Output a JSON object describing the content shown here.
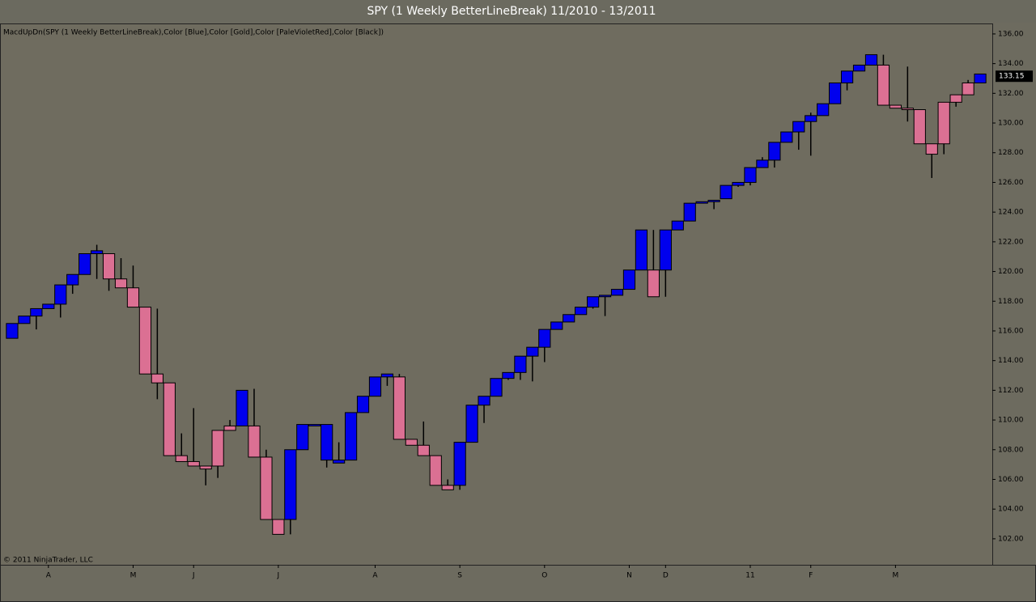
{
  "chart_data": {
    "type": "candlestick",
    "title": "SPY (1 Weekly BetterLineBreak)  11/2010 - 13/2011",
    "indicator_label": "MacdUpDn(SPY (1 Weekly BetterLineBreak),Color [Blue],Color [Gold],Color [PaleVioletRed],Color [Black])",
    "copyright": "© 2011 NinjaTrader, LLC",
    "open": [
      115.5,
      116.5,
      117.0,
      117.5,
      117.8,
      119.1,
      119.8,
      121.2,
      121.2,
      119.5,
      118.9,
      117.6,
      113.1,
      112.5,
      107.6,
      107.2,
      106.9,
      106.9,
      109.3,
      109.6,
      109.6,
      107.5,
      103.3,
      103.3,
      108.0,
      109.6,
      109.7,
      107.3,
      107.3,
      110.5,
      111.6,
      112.9,
      112.9,
      108.7,
      108.3,
      107.6,
      105.6,
      105.6,
      108.5,
      111.0,
      111.6,
      112.8,
      113.2,
      114.3,
      114.9,
      116.1,
      116.6,
      117.1,
      117.6,
      118.3,
      118.4,
      118.8,
      120.1,
      120.1,
      120.1,
      122.8,
      123.4,
      124.6,
      124.7,
      124.9,
      125.8,
      126.0,
      127.0,
      127.5,
      128.7,
      129.4,
      130.1,
      130.5,
      131.3,
      132.7,
      133.5,
      133.9,
      133.9,
      131.2,
      131.0,
      130.9,
      128.6,
      128.6,
      131.4,
      131.9,
      132.7
    ],
    "high": [
      116.5,
      117.0,
      117.5,
      117.8,
      119.1,
      119.8,
      121.2,
      121.8,
      121.2,
      120.9,
      120.4,
      117.6,
      117.5,
      112.5,
      109.1,
      110.8,
      106.9,
      109.3,
      110.0,
      112.0,
      112.1,
      108.0,
      103.3,
      108.0,
      109.7,
      109.7,
      109.7,
      108.5,
      110.5,
      111.6,
      112.9,
      113.1,
      113.1,
      108.7,
      109.9,
      107.6,
      106.0,
      108.5,
      111.0,
      111.6,
      112.8,
      113.2,
      114.3,
      114.9,
      116.1,
      116.6,
      117.1,
      117.6,
      118.3,
      118.4,
      118.8,
      120.1,
      122.8,
      122.8,
      122.8,
      123.4,
      124.6,
      124.7,
      124.8,
      125.8,
      126.0,
      127.0,
      127.7,
      128.7,
      129.4,
      130.1,
      130.7,
      131.3,
      132.7,
      133.5,
      133.9,
      134.6,
      134.6,
      131.2,
      133.8,
      130.9,
      128.6,
      131.4,
      131.9,
      132.9,
      133.3
    ],
    "low": [
      115.5,
      116.5,
      116.1,
      117.5,
      116.9,
      118.5,
      119.8,
      119.5,
      118.7,
      118.9,
      117.6,
      113.1,
      111.4,
      107.6,
      107.2,
      106.9,
      105.6,
      106.1,
      109.3,
      109.6,
      107.5,
      103.3,
      102.3,
      102.3,
      108.0,
      109.6,
      106.8,
      107.1,
      107.3,
      110.5,
      111.6,
      112.3,
      108.7,
      108.3,
      107.6,
      105.6,
      105.3,
      105.3,
      108.5,
      109.8,
      111.6,
      112.7,
      112.7,
      112.6,
      113.9,
      116.1,
      116.6,
      117.1,
      117.5,
      117.0,
      118.4,
      118.8,
      120.1,
      118.3,
      118.3,
      122.8,
      123.4,
      124.6,
      124.2,
      124.9,
      125.7,
      125.8,
      127.0,
      127.0,
      128.7,
      128.2,
      127.8,
      130.5,
      131.3,
      132.2,
      133.5,
      133.9,
      131.2,
      131.0,
      130.1,
      128.6,
      126.3,
      127.9,
      131.1,
      131.9,
      132.7
    ],
    "close": [
      116.5,
      117.0,
      117.5,
      117.8,
      119.1,
      119.8,
      121.2,
      121.4,
      119.5,
      118.9,
      117.6,
      113.1,
      112.5,
      107.6,
      107.2,
      106.9,
      106.7,
      109.3,
      109.6,
      112.0,
      107.5,
      103.3,
      102.3,
      108.0,
      109.7,
      109.7,
      107.3,
      107.1,
      110.5,
      111.6,
      112.9,
      113.1,
      108.7,
      108.3,
      107.6,
      105.6,
      105.3,
      108.5,
      111.0,
      111.6,
      112.8,
      113.2,
      114.3,
      114.9,
      116.1,
      116.6,
      117.1,
      117.6,
      118.3,
      118.4,
      118.8,
      120.1,
      122.8,
      118.3,
      122.8,
      123.4,
      124.6,
      124.7,
      124.8,
      125.8,
      126.0,
      127.0,
      127.5,
      128.7,
      129.4,
      130.1,
      130.5,
      131.3,
      132.7,
      133.5,
      133.9,
      134.6,
      131.2,
      131.0,
      130.9,
      128.6,
      127.9,
      131.4,
      131.9,
      132.7,
      133.3
    ],
    "colors": [
      "#0000ee",
      "#0000ee",
      "#0000ee",
      "#0000ee",
      "#0000ee",
      "#0000ee",
      "#0000ee",
      "#0000ee",
      "#db7093",
      "#db7093",
      "#db7093",
      "#db7093",
      "#db7093",
      "#db7093",
      "#db7093",
      "#db7093",
      "#db7093",
      "#db7093",
      "#db7093",
      "#0000ee",
      "#db7093",
      "#db7093",
      "#db7093",
      "#0000ee",
      "#0000ee",
      "#0000ee",
      "#0000ee",
      "#0000ee",
      "#0000ee",
      "#0000ee",
      "#0000ee",
      "#0000ee",
      "#db7093",
      "#db7093",
      "#db7093",
      "#db7093",
      "#db7093",
      "#0000ee",
      "#0000ee",
      "#0000ee",
      "#0000ee",
      "#0000ee",
      "#0000ee",
      "#0000ee",
      "#0000ee",
      "#0000ee",
      "#0000ee",
      "#0000ee",
      "#0000ee",
      "#0000ee",
      "#0000ee",
      "#0000ee",
      "#0000ee",
      "#db7093",
      "#0000ee",
      "#0000ee",
      "#0000ee",
      "#0000ee",
      "#0000ee",
      "#0000ee",
      "#0000ee",
      "#0000ee",
      "#0000ee",
      "#0000ee",
      "#0000ee",
      "#0000ee",
      "#0000ee",
      "#0000ee",
      "#0000ee",
      "#0000ee",
      "#0000ee",
      "#0000ee",
      "#db7093",
      "#db7093",
      "#db7093",
      "#db7093",
      "#db7093",
      "#db7093",
      "#db7093",
      "#db7093",
      "#0000ee"
    ],
    "xlim": [
      -1,
      81
    ],
    "xticks": [
      {
        "value": 3,
        "label": "A"
      },
      {
        "value": 10,
        "label": "M"
      },
      {
        "value": 15,
        "label": "J"
      },
      {
        "value": 22,
        "label": "J"
      },
      {
        "value": 30,
        "label": "A"
      },
      {
        "value": 37,
        "label": "S"
      },
      {
        "value": 44,
        "label": "O"
      },
      {
        "value": 51,
        "label": "N"
      },
      {
        "value": 54,
        "label": "D"
      },
      {
        "value": 61,
        "label": "11"
      },
      {
        "value": 66,
        "label": "F"
      },
      {
        "value": 73,
        "label": "M"
      }
    ],
    "ylim": [
      100.25,
      136.65
    ],
    "yticks": [
      {
        "value": 102,
        "label": "102.00"
      },
      {
        "value": 104,
        "label": "104.00"
      },
      {
        "value": 106,
        "label": "106.00"
      },
      {
        "value": 108,
        "label": "108.00"
      },
      {
        "value": 110,
        "label": "110.00"
      },
      {
        "value": 112,
        "label": "112.00"
      },
      {
        "value": 114,
        "label": "114.00"
      },
      {
        "value": 116,
        "label": "116.00"
      },
      {
        "value": 118,
        "label": "118.00"
      },
      {
        "value": 120,
        "label": "120.00"
      },
      {
        "value": 122,
        "label": "122.00"
      },
      {
        "value": 124,
        "label": "124.00"
      },
      {
        "value": 126,
        "label": "126.00"
      },
      {
        "value": 128,
        "label": "128.00"
      },
      {
        "value": 130,
        "label": "130.00"
      },
      {
        "value": 132,
        "label": "132.00"
      },
      {
        "value": 134,
        "label": "134.00"
      },
      {
        "value": 136,
        "label": "136.00"
      }
    ],
    "last_price": 133.15
  }
}
